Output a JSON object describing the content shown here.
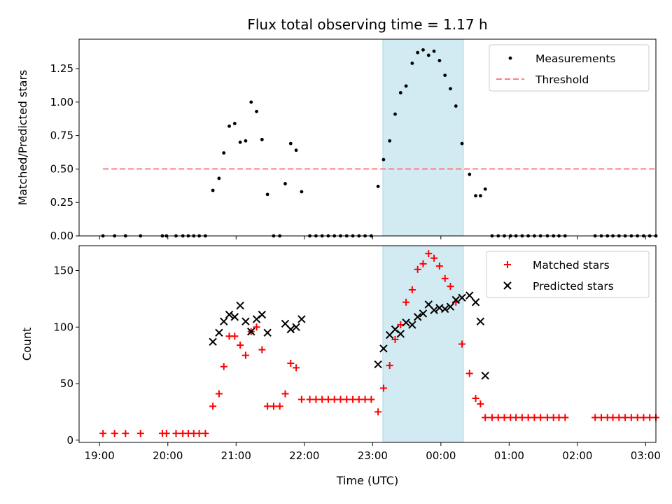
{
  "chart_data": [
    {
      "type": "scatter",
      "title": "Flux total observing time = 1.17 h",
      "ylabel": "Matched/Predicted stars",
      "xlabel": "",
      "ylim": [
        0,
        1.47
      ],
      "yticks": [
        0.0,
        0.25,
        0.5,
        0.75,
        1.0,
        1.25
      ],
      "ytick_labels": [
        "0.00",
        "0.25",
        "0.50",
        "0.75",
        "1.00",
        "1.25"
      ],
      "xlim_hours": [
        18.7,
        27.15
      ],
      "highlight_span_hours": [
        23.15,
        24.33
      ],
      "highlight_color": "#add8e6",
      "legend_position": "upper right",
      "legend": [
        {
          "label": "Measurements",
          "marker": "dot",
          "color": "#000000"
        },
        {
          "label": "Threshold",
          "marker": "dashed-line",
          "color": "#ff7f7f"
        }
      ],
      "threshold": {
        "value": 0.5,
        "x_range_hours": [
          19.05,
          27.17
        ],
        "color": "#ff7f7f"
      },
      "series": [
        {
          "name": "Measurements",
          "color": "#000000",
          "points": [
            [
              19.05,
              0
            ],
            [
              19.22,
              0
            ],
            [
              19.38,
              0
            ],
            [
              19.6,
              0
            ],
            [
              19.92,
              0
            ],
            [
              19.98,
              0
            ],
            [
              20.12,
              0
            ],
            [
              20.22,
              0
            ],
            [
              20.3,
              0
            ],
            [
              20.38,
              0
            ],
            [
              20.46,
              0
            ],
            [
              20.55,
              0
            ],
            [
              20.66,
              0.34
            ],
            [
              20.75,
              0.43
            ],
            [
              20.82,
              0.62
            ],
            [
              20.9,
              0.82
            ],
            [
              20.98,
              0.84
            ],
            [
              21.06,
              0.7
            ],
            [
              21.14,
              0.71
            ],
            [
              21.22,
              1.0
            ],
            [
              21.3,
              0.93
            ],
            [
              21.38,
              0.72
            ],
            [
              21.46,
              0.31
            ],
            [
              21.55,
              0
            ],
            [
              21.64,
              0
            ],
            [
              21.72,
              0.39
            ],
            [
              21.8,
              0.69
            ],
            [
              21.88,
              0.64
            ],
            [
              21.96,
              0.33
            ],
            [
              22.08,
              0
            ],
            [
              22.17,
              0
            ],
            [
              22.26,
              0
            ],
            [
              22.35,
              0
            ],
            [
              22.44,
              0
            ],
            [
              22.53,
              0
            ],
            [
              22.62,
              0
            ],
            [
              22.71,
              0
            ],
            [
              22.8,
              0
            ],
            [
              22.89,
              0
            ],
            [
              22.98,
              0
            ],
            [
              23.08,
              0.37
            ],
            [
              23.16,
              0.57
            ],
            [
              23.25,
              0.71
            ],
            [
              23.33,
              0.91
            ],
            [
              23.41,
              1.07
            ],
            [
              23.49,
              1.12
            ],
            [
              23.58,
              1.29
            ],
            [
              23.66,
              1.37
            ],
            [
              23.74,
              1.39
            ],
            [
              23.82,
              1.35
            ],
            [
              23.9,
              1.38
            ],
            [
              23.98,
              1.31
            ],
            [
              24.06,
              1.2
            ],
            [
              24.14,
              1.1
            ],
            [
              24.22,
              0.97
            ],
            [
              24.31,
              0.69
            ],
            [
              24.42,
              0.46
            ],
            [
              24.51,
              0.3
            ],
            [
              24.58,
              0.3
            ],
            [
              24.65,
              0.35
            ],
            [
              24.75,
              0
            ],
            [
              24.84,
              0
            ],
            [
              24.93,
              0
            ],
            [
              25.02,
              0
            ],
            [
              25.1,
              0
            ],
            [
              25.19,
              0
            ],
            [
              25.28,
              0
            ],
            [
              25.37,
              0
            ],
            [
              25.46,
              0
            ],
            [
              25.56,
              0
            ],
            [
              25.65,
              0
            ],
            [
              25.73,
              0
            ],
            [
              25.82,
              0
            ],
            [
              26.26,
              0
            ],
            [
              26.35,
              0
            ],
            [
              26.44,
              0
            ],
            [
              26.52,
              0
            ],
            [
              26.61,
              0
            ],
            [
              26.7,
              0
            ],
            [
              26.79,
              0
            ],
            [
              26.88,
              0
            ],
            [
              26.97,
              0
            ],
            [
              27.06,
              0
            ],
            [
              27.15,
              0
            ]
          ]
        }
      ]
    },
    {
      "type": "scatter",
      "title": "",
      "xlabel": "Time (UTC)",
      "ylabel": "Count",
      "ylim": [
        -2,
        172
      ],
      "yticks": [
        0,
        50,
        100,
        150
      ],
      "ytick_labels": [
        "0",
        "50",
        "100",
        "150"
      ],
      "xlim_hours": [
        18.7,
        27.15
      ],
      "xticks_hours": [
        19,
        20,
        21,
        22,
        23,
        24,
        25,
        26,
        27
      ],
      "xtick_labels": [
        "19:00",
        "20:00",
        "21:00",
        "22:00",
        "23:00",
        "00:00",
        "01:00",
        "02:00",
        "03:00"
      ],
      "highlight_span_hours": [
        23.15,
        24.33
      ],
      "highlight_color": "#add8e6",
      "legend_position": "upper right",
      "legend": [
        {
          "label": "Matched stars",
          "marker": "plus",
          "color": "#ff0000"
        },
        {
          "label": "Predicted stars",
          "marker": "x",
          "color": "#000000"
        }
      ],
      "series": [
        {
          "name": "Matched stars",
          "marker": "plus",
          "color": "#ff0000",
          "points": [
            [
              19.05,
              6
            ],
            [
              19.22,
              6
            ],
            [
              19.38,
              6
            ],
            [
              19.6,
              6
            ],
            [
              19.92,
              6
            ],
            [
              19.98,
              6
            ],
            [
              20.12,
              6
            ],
            [
              20.22,
              6
            ],
            [
              20.3,
              6
            ],
            [
              20.38,
              6
            ],
            [
              20.46,
              6
            ],
            [
              20.55,
              6
            ],
            [
              20.66,
              30
            ],
            [
              20.75,
              41
            ],
            [
              20.82,
              65
            ],
            [
              20.9,
              92
            ],
            [
              20.98,
              92
            ],
            [
              21.06,
              84
            ],
            [
              21.14,
              75
            ],
            [
              21.22,
              96
            ],
            [
              21.3,
              100
            ],
            [
              21.38,
              80
            ],
            [
              21.46,
              30
            ],
            [
              21.55,
              30
            ],
            [
              21.64,
              30
            ],
            [
              21.72,
              41
            ],
            [
              21.8,
              68
            ],
            [
              21.88,
              64
            ],
            [
              21.96,
              36
            ],
            [
              22.08,
              36
            ],
            [
              22.17,
              36
            ],
            [
              22.26,
              36
            ],
            [
              22.35,
              36
            ],
            [
              22.44,
              36
            ],
            [
              22.53,
              36
            ],
            [
              22.62,
              36
            ],
            [
              22.71,
              36
            ],
            [
              22.8,
              36
            ],
            [
              22.89,
              36
            ],
            [
              22.98,
              36
            ],
            [
              23.08,
              25
            ],
            [
              23.16,
              46
            ],
            [
              23.25,
              66
            ],
            [
              23.33,
              89
            ],
            [
              23.41,
              102
            ],
            [
              23.49,
              122
            ],
            [
              23.58,
              133
            ],
            [
              23.66,
              151
            ],
            [
              23.74,
              156
            ],
            [
              23.82,
              165
            ],
            [
              23.9,
              161
            ],
            [
              23.98,
              154
            ],
            [
              24.06,
              143
            ],
            [
              24.14,
              136
            ],
            [
              24.22,
              122
            ],
            [
              24.31,
              85
            ],
            [
              24.42,
              59
            ],
            [
              24.51,
              37
            ],
            [
              24.58,
              32
            ],
            [
              24.65,
              20
            ],
            [
              24.75,
              20
            ],
            [
              24.84,
              20
            ],
            [
              24.93,
              20
            ],
            [
              25.02,
              20
            ],
            [
              25.1,
              20
            ],
            [
              25.19,
              20
            ],
            [
              25.28,
              20
            ],
            [
              25.37,
              20
            ],
            [
              25.46,
              20
            ],
            [
              25.56,
              20
            ],
            [
              25.65,
              20
            ],
            [
              25.73,
              20
            ],
            [
              25.82,
              20
            ],
            [
              26.26,
              20
            ],
            [
              26.35,
              20
            ],
            [
              26.44,
              20
            ],
            [
              26.52,
              20
            ],
            [
              26.61,
              20
            ],
            [
              26.7,
              20
            ],
            [
              26.79,
              20
            ],
            [
              26.88,
              20
            ],
            [
              26.97,
              20
            ],
            [
              27.06,
              20
            ],
            [
              27.15,
              20
            ]
          ]
        },
        {
          "name": "Predicted stars",
          "marker": "x",
          "color": "#000000",
          "points": [
            [
              20.66,
              87
            ],
            [
              20.75,
              95
            ],
            [
              20.82,
              105
            ],
            [
              20.9,
              111
            ],
            [
              20.98,
              109
            ],
            [
              21.06,
              119
            ],
            [
              21.14,
              105
            ],
            [
              21.22,
              96
            ],
            [
              21.3,
              107
            ],
            [
              21.38,
              111
            ],
            [
              21.46,
              95
            ],
            [
              21.72,
              103
            ],
            [
              21.8,
              98
            ],
            [
              21.88,
              100
            ],
            [
              21.96,
              107
            ],
            [
              23.08,
              67
            ],
            [
              23.16,
              81
            ],
            [
              23.25,
              93
            ],
            [
              23.33,
              98
            ],
            [
              23.41,
              94
            ],
            [
              23.49,
              104
            ],
            [
              23.58,
              102
            ],
            [
              23.66,
              109
            ],
            [
              23.74,
              112
            ],
            [
              23.82,
              120
            ],
            [
              23.9,
              115
            ],
            [
              23.98,
              117
            ],
            [
              24.06,
              116
            ],
            [
              24.14,
              118
            ],
            [
              24.22,
              124
            ],
            [
              24.31,
              126
            ],
            [
              24.42,
              128
            ],
            [
              24.51,
              122
            ],
            [
              24.58,
              105
            ],
            [
              24.65,
              57
            ]
          ]
        }
      ]
    }
  ]
}
